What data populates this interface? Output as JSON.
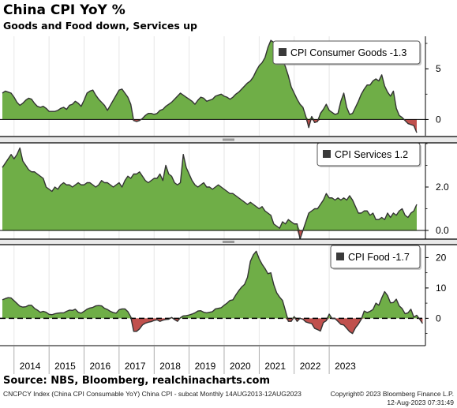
{
  "title": "China CPI YoY %",
  "subtitle": "Goods and Food down, Services up",
  "source": "Source: NBS, Bloomberg, realchinacharts.com",
  "footer_left": "CNCPCY Index (China CPI Consumable YoY) China CPI - subcat  Monthly 14AUG2013-12AUG2023",
  "footer_right_1": "Copyright© 2023 Bloomberg Finance L.P.",
  "footer_right_2": "12-Aug-2023 07:31:49",
  "colors": {
    "positive_fill": "#6fae47",
    "negative_fill": "#c0504d",
    "line": "#333333",
    "legend_swatch": "#3a3a3a"
  },
  "chart_data": [
    {
      "type": "area",
      "legend": "CPI Consumer Goods -1.3",
      "legend_position": "top-right",
      "ylim": [
        -1.6,
        8.2
      ],
      "yticks": [
        "5",
        "0"
      ],
      "ytick_values": [
        5,
        0
      ],
      "zero_line": "solid",
      "x_start": "2013-09",
      "values": [
        2.6,
        2.8,
        2.7,
        2.6,
        2.2,
        1.7,
        1.4,
        1.6,
        1.9,
        2.1,
        2.0,
        1.6,
        1.3,
        1.2,
        1.3,
        1.1,
        0.8,
        0.8,
        0.8,
        0.9,
        1.1,
        1.2,
        1.0,
        1.4,
        1.5,
        1.8,
        1.6,
        1.3,
        1.9,
        2.6,
        2.8,
        2.9,
        2.4,
        2.0,
        1.7,
        1.4,
        0.9,
        1.4,
        1.9,
        2.4,
        2.9,
        3.0,
        2.6,
        2.2,
        1.5,
        -0.1,
        -0.2,
        -0.1,
        0.1,
        0.4,
        0.6,
        0.6,
        0.5,
        0.6,
        0.9,
        1.0,
        1.3,
        1.5,
        1.7,
        2.0,
        2.3,
        2.6,
        2.4,
        2.2,
        2.0,
        1.8,
        1.5,
        1.9,
        2.2,
        2.1,
        1.8,
        1.9,
        2.0,
        2.3,
        2.4,
        2.5,
        2.3,
        2.2,
        2.0,
        2.2,
        2.5,
        2.7,
        3.0,
        3.3,
        3.6,
        3.8,
        4.2,
        4.8,
        5.3,
        5.6,
        6.1,
        7.1,
        7.8,
        7.6,
        6.6,
        6.1,
        5.9,
        5.2,
        4.3,
        3.2,
        2.6,
        2.0,
        1.5,
        1.2,
        0.3,
        -0.8,
        0.3,
        -0.3,
        -0.2,
        0.6,
        1.0,
        1.5,
        0.9,
        0.7,
        0.5,
        0.6,
        1.8,
        2.6,
        1.2,
        0.5,
        0.6,
        1.2,
        1.8,
        2.5,
        3.0,
        3.4,
        3.4,
        3.8,
        4.0,
        3.8,
        4.4,
        3.3,
        2.7,
        2.3,
        2.8,
        1.1,
        0.4,
        0.2,
        -0.1,
        -0.4,
        -0.5,
        -0.6,
        -1.3
      ]
    },
    {
      "type": "area",
      "legend": "CPI Services 1.2",
      "legend_position": "top-right",
      "ylim": [
        -0.4,
        4.0
      ],
      "yticks": [
        "2.0",
        "0.0"
      ],
      "ytick_values": [
        2,
        0
      ],
      "zero_line": "solid",
      "x_start": "2013-09",
      "values": [
        2.9,
        3.1,
        3.3,
        3.5,
        3.3,
        3.5,
        3.8,
        3.2,
        3.0,
        2.8,
        2.7,
        2.7,
        2.6,
        2.5,
        2.4,
        2.0,
        1.9,
        1.8,
        2.0,
        1.9,
        2.1,
        2.2,
        2.1,
        2.1,
        2.0,
        2.1,
        2.2,
        2.1,
        2.1,
        2.2,
        2.2,
        2.1,
        2.0,
        2.1,
        2.3,
        2.2,
        2.2,
        2.1,
        2.0,
        2.1,
        2.2,
        2.0,
        2.3,
        2.5,
        2.4,
        2.6,
        2.6,
        2.7,
        2.5,
        2.3,
        2.2,
        2.3,
        2.4,
        2.4,
        2.6,
        2.3,
        3.0,
        2.6,
        2.5,
        2.2,
        2.1,
        2.2,
        3.5,
        2.9,
        2.6,
        2.3,
        2.1,
        2.0,
        2.1,
        2.2,
        2.0,
        2.0,
        1.9,
        2.0,
        2.1,
        2.0,
        1.9,
        1.8,
        1.7,
        1.7,
        1.6,
        1.5,
        1.4,
        1.3,
        1.2,
        1.3,
        1.2,
        1.1,
        1.0,
        1.1,
        0.9,
        0.8,
        0.7,
        0.3,
        0.2,
        0.1,
        0.4,
        0.3,
        0.5,
        0.4,
        0.3,
        0.3,
        -0.4,
        0.0,
        0.4,
        0.8,
        0.9,
        1.0,
        1.0,
        1.2,
        1.4,
        1.7,
        1.5,
        1.5,
        1.4,
        1.5,
        1.4,
        1.5,
        1.4,
        1.6,
        1.4,
        1.1,
        0.8,
        0.8,
        0.9,
        0.9,
        0.7,
        0.8,
        0.5,
        0.5,
        0.6,
        0.5,
        0.8,
        0.6,
        0.8,
        0.7,
        0.9,
        1.0,
        0.7,
        0.6,
        0.8,
        0.9,
        1.2
      ]
    },
    {
      "type": "area",
      "legend": "CPI Food -1.7",
      "legend_position": "top-right",
      "ylim": [
        -9,
        24
      ],
      "yticks": [
        "20",
        "10",
        "0"
      ],
      "ytick_values": [
        20,
        10,
        0
      ],
      "zero_line": "dashed",
      "x_start": "2013-09",
      "x_axis_labels": [
        "2014",
        "2015",
        "2016",
        "2017",
        "2018",
        "2019",
        "2020",
        "2021",
        "2022",
        "2023"
      ],
      "values": [
        6.1,
        6.5,
        6.8,
        6.7,
        5.8,
        4.9,
        4.0,
        3.7,
        3.8,
        4.3,
        4.3,
        3.3,
        2.7,
        2.0,
        2.3,
        2.0,
        1.3,
        1.2,
        1.5,
        1.7,
        1.8,
        1.8,
        2.3,
        2.7,
        2.6,
        3.0,
        2.0,
        1.7,
        2.3,
        3.0,
        3.4,
        3.6,
        4.1,
        4.2,
        4.1,
        3.3,
        2.9,
        2.3,
        1.9,
        1.7,
        2.8,
        3.1,
        3.1,
        2.2,
        0.5,
        -4.3,
        -4.3,
        -3.5,
        -2.2,
        -1.6,
        -1.3,
        -1.1,
        -0.7,
        -0.5,
        -1.0,
        -0.6,
        -0.4,
        -0.3,
        0.3,
        -0.4,
        -1.0,
        0.2,
        0.8,
        0.9,
        1.1,
        1.4,
        1.8,
        2.4,
        2.5,
        2.0,
        1.8,
        2.0,
        2.2,
        3.1,
        3.3,
        3.5,
        4.3,
        5.0,
        5.9,
        6.1,
        7.7,
        9.1,
        10.3,
        11.2,
        13.5,
        18.8,
        20.9,
        22.1,
        19.6,
        17.8,
        16.4,
        14.7,
        15.0,
        11.1,
        8.4,
        7.0,
        5.9,
        2.5,
        -1.0,
        -1.0,
        0.6,
        -1.0,
        0.0,
        -0.3,
        -1.2,
        -1.5,
        -1.7,
        -3.3,
        -3.7,
        -4.2,
        -1.4,
        -0.8,
        1.4,
        -0.1,
        -0.1,
        -1.0,
        -2.0,
        -2.2,
        -3.3,
        -4.4,
        -5.0,
        -3.1,
        -1.9,
        -0.3,
        2.4,
        1.9,
        2.3,
        2.9,
        5.0,
        4.3,
        6.7,
        8.8,
        7.5,
        5.1,
        5.2,
        6.3,
        4.1,
        3.2,
        1.5,
        1.8,
        3.0,
        0.4,
        1.0,
        -0.3,
        -1.7
      ]
    }
  ]
}
